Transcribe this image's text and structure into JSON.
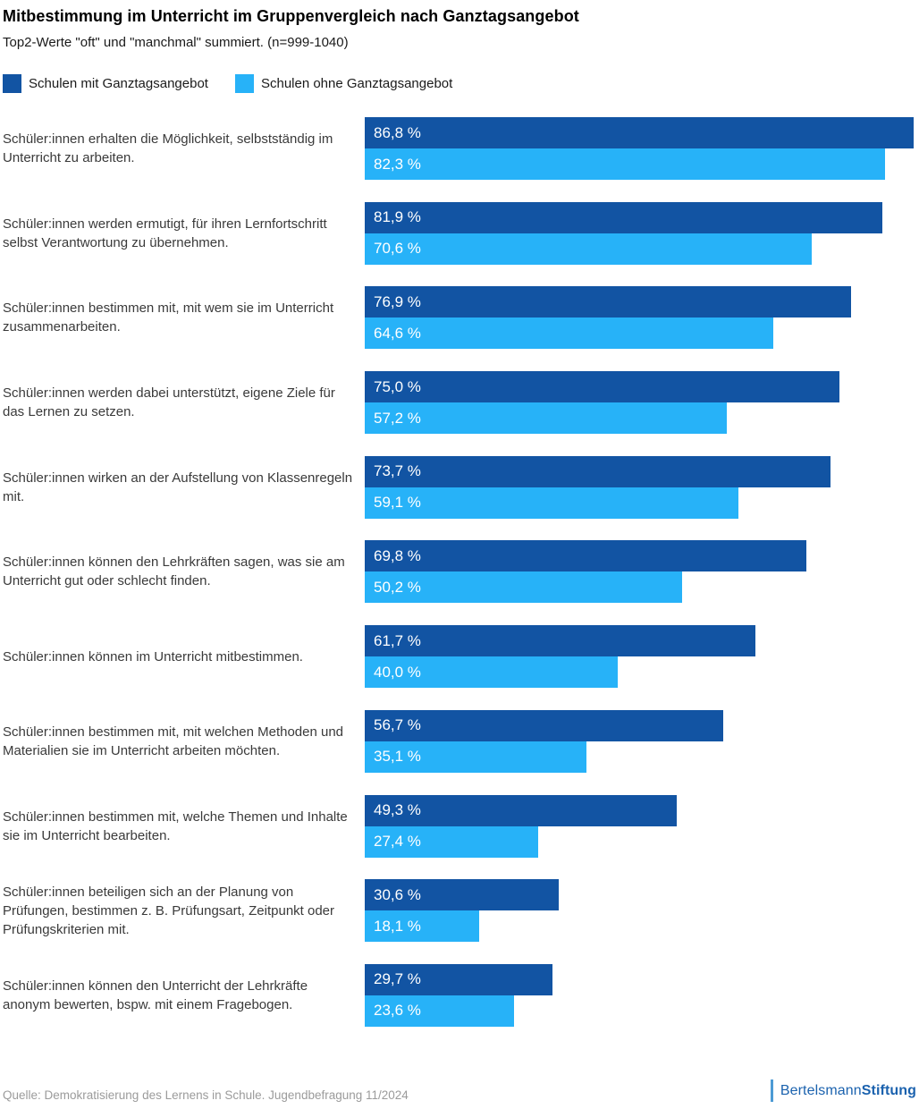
{
  "header": {
    "title": "Mitbestimmung im Unterricht im Gruppenvergleich nach Ganztagsangebot",
    "subtitle": "Top2-Werte \"oft\" und \"manchmal\" summiert. (n=999-1040)"
  },
  "chart_data": {
    "type": "bar",
    "orientation": "horizontal",
    "title": "Mitbestimmung im Unterricht im Gruppenvergleich nach Ganztagsangebot",
    "subtitle": "Top2-Werte \"oft\" und \"manchmal\" summiert. (n=999-1040)",
    "xlabel": "",
    "ylabel": "",
    "xlim": [
      0,
      87.2
    ],
    "grid": false,
    "legend_position": "top-left",
    "value_labels": "inside-start",
    "categories": [
      "Schüler:innen erhalten die Möglichkeit, selbstständig im Unterricht zu arbeiten.",
      "Schüler:innen werden ermutigt, für ihren Lernfortschritt selbst Verantwortung zu übernehmen.",
      "Schüler:innen bestimmen mit, mit wem sie im Unterricht zusammenarbeiten.",
      "Schüler:innen werden dabei unterstützt, eigene Ziele für das Lernen zu setzen.",
      "Schüler:innen wirken an der Aufstellung von Klassenregeln mit.",
      "Schüler:innen können den Lehrkräften sagen, was sie am Unterricht gut oder schlecht finden.",
      "Schüler:innen können im Unterricht mitbestimmen.",
      "Schüler:innen bestimmen mit, mit welchen Methoden und Materialien sie im Unterricht arbeiten möchten.",
      "Schüler:innen bestimmen mit, welche Themen und Inhalte sie im Unterricht bearbeiten.",
      "Schüler:innen beteiligen sich an der Planung von Prüfungen, bestimmen z. B. Prüfungsart, Zeitpunkt oder Prüfungskriterien mit.",
      "Schüler:innen können den Unterricht der Lehrkräfte anonym bewerten, bspw. mit einem Fragebogen."
    ],
    "series": [
      {
        "name": "Schulen mit Ganztagsangebot",
        "color": "#1254A3",
        "values": [
          86.8,
          81.9,
          76.9,
          75.0,
          73.7,
          69.8,
          61.7,
          56.7,
          49.3,
          30.6,
          29.7
        ],
        "display": [
          "86,8 %",
          "81,9 %",
          "76,9 %",
          "75,0 %",
          "73,7 %",
          "69,8 %",
          "61,7 %",
          "56,7 %",
          "49,3 %",
          "30,6 %",
          "29,7 %"
        ]
      },
      {
        "name": "Schulen ohne Ganztagsangebot",
        "color": "#27B2F8",
        "values": [
          82.3,
          70.6,
          64.6,
          57.2,
          59.1,
          50.2,
          40.0,
          35.1,
          27.4,
          18.1,
          23.6
        ],
        "display": [
          "82,3 %",
          "70,6 %",
          "64,6 %",
          "57,2 %",
          "59,1 %",
          "50,2 %",
          "40,0 %",
          "35,1 %",
          "27,4 %",
          "18,1 %",
          "23,6 %"
        ]
      }
    ]
  },
  "footer": {
    "source": "Quelle: Demokratisierung des Lernens in Schule. Jugendbefragung 11/2024",
    "logo": {
      "regular": "Bertelsmann",
      "bold": "Stiftung"
    }
  }
}
